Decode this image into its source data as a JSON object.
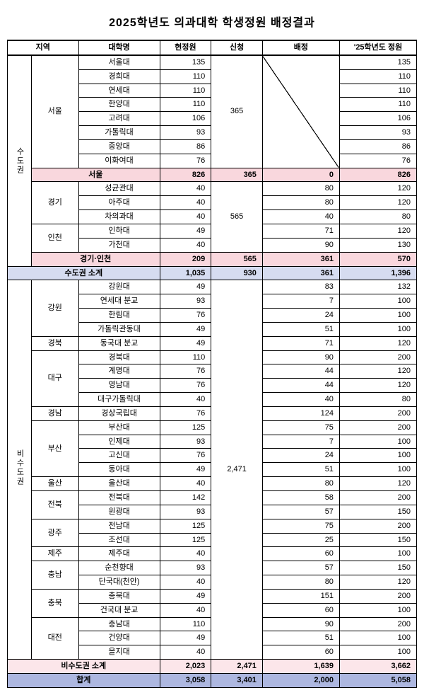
{
  "title": "2025학년도 의과대학 학생정원 배정결과",
  "headers": {
    "region": "지역",
    "univ": "대학명",
    "current": "현정원",
    "request": "신청",
    "allocated": "배정",
    "year25": "'25학년도 정원"
  },
  "seoul_request": "365",
  "gyeongin_request": "565",
  "nonmetro_request": "2,471",
  "metro_label": "수도권",
  "nonmetro_label": "비수도권",
  "seoul": {
    "label": "서울",
    "rows": [
      {
        "u": "서울대",
        "c": "135",
        "a": "",
        "y": "135"
      },
      {
        "u": "경희대",
        "c": "110",
        "a": "",
        "y": "110"
      },
      {
        "u": "연세대",
        "c": "110",
        "a": "",
        "y": "110"
      },
      {
        "u": "한양대",
        "c": "110",
        "a": "",
        "y": "110"
      },
      {
        "u": "고려대",
        "c": "106",
        "a": "",
        "y": "106"
      },
      {
        "u": "가톨릭대",
        "c": "93",
        "a": "",
        "y": "93"
      },
      {
        "u": "중앙대",
        "c": "86",
        "a": "",
        "y": "86"
      },
      {
        "u": "이화여대",
        "c": "76",
        "a": "",
        "y": "76"
      }
    ]
  },
  "seoul_sub": {
    "label": "서울",
    "c": "826",
    "r": "365",
    "a": "0",
    "y": "826"
  },
  "gyeonggi": {
    "label": "경기",
    "rows": [
      {
        "u": "성균관대",
        "c": "40",
        "a": "80",
        "y": "120"
      },
      {
        "u": "아주대",
        "c": "40",
        "a": "80",
        "y": "120"
      },
      {
        "u": "차의과대",
        "c": "40",
        "a": "40",
        "y": "80"
      }
    ]
  },
  "incheon": {
    "label": "인천",
    "rows": [
      {
        "u": "인하대",
        "c": "49",
        "a": "71",
        "y": "120"
      },
      {
        "u": "가천대",
        "c": "40",
        "a": "90",
        "y": "130"
      }
    ]
  },
  "gyeongin_sub": {
    "label": "경기·인천",
    "c": "209",
    "r": "565",
    "a": "361",
    "y": "570"
  },
  "metro_sub": {
    "label": "수도권 소계",
    "c": "1,035",
    "r": "930",
    "a": "361",
    "y": "1,396"
  },
  "nonmetro_groups": [
    {
      "label": "강원",
      "rows": [
        {
          "u": "강원대",
          "c": "49",
          "a": "83",
          "y": "132"
        },
        {
          "u": "연세대 분교",
          "c": "93",
          "a": "7",
          "y": "100"
        },
        {
          "u": "한림대",
          "c": "76",
          "a": "24",
          "y": "100"
        },
        {
          "u": "가톨릭관동대",
          "c": "49",
          "a": "51",
          "y": "100"
        }
      ]
    },
    {
      "label": "경북",
      "rows": [
        {
          "u": "동국대 분교",
          "c": "49",
          "a": "71",
          "y": "120"
        }
      ]
    },
    {
      "label": "대구",
      "rows": [
        {
          "u": "경북대",
          "c": "110",
          "a": "90",
          "y": "200"
        },
        {
          "u": "계명대",
          "c": "76",
          "a": "44",
          "y": "120"
        },
        {
          "u": "영남대",
          "c": "76",
          "a": "44",
          "y": "120"
        },
        {
          "u": "대구가톨릭대",
          "c": "40",
          "a": "40",
          "y": "80"
        }
      ]
    },
    {
      "label": "경남",
      "rows": [
        {
          "u": "경상국립대",
          "c": "76",
          "a": "124",
          "y": "200"
        }
      ]
    },
    {
      "label": "부산",
      "rows": [
        {
          "u": "부산대",
          "c": "125",
          "a": "75",
          "y": "200"
        },
        {
          "u": "인제대",
          "c": "93",
          "a": "7",
          "y": "100"
        },
        {
          "u": "고신대",
          "c": "76",
          "a": "24",
          "y": "100"
        },
        {
          "u": "동아대",
          "c": "49",
          "a": "51",
          "y": "100"
        }
      ]
    },
    {
      "label": "울산",
      "rows": [
        {
          "u": "울산대",
          "c": "40",
          "a": "80",
          "y": "120"
        }
      ]
    },
    {
      "label": "전북",
      "rows": [
        {
          "u": "전북대",
          "c": "142",
          "a": "58",
          "y": "200"
        },
        {
          "u": "원광대",
          "c": "93",
          "a": "57",
          "y": "150"
        }
      ]
    },
    {
      "label": "광주",
      "rows": [
        {
          "u": "전남대",
          "c": "125",
          "a": "75",
          "y": "200"
        },
        {
          "u": "조선대",
          "c": "125",
          "a": "25",
          "y": "150"
        }
      ]
    },
    {
      "label": "제주",
      "rows": [
        {
          "u": "제주대",
          "c": "40",
          "a": "60",
          "y": "100"
        }
      ]
    },
    {
      "label": "충남",
      "rows": [
        {
          "u": "순천향대",
          "c": "93",
          "a": "57",
          "y": "150"
        },
        {
          "u": "단국대(천안)",
          "c": "40",
          "a": "80",
          "y": "120"
        }
      ]
    },
    {
      "label": "충북",
      "rows": [
        {
          "u": "충북대",
          "c": "49",
          "a": "151",
          "y": "200"
        },
        {
          "u": "건국대 분교",
          "c": "40",
          "a": "60",
          "y": "100"
        }
      ]
    },
    {
      "label": "대전",
      "rows": [
        {
          "u": "충남대",
          "c": "110",
          "a": "90",
          "y": "200"
        },
        {
          "u": "건양대",
          "c": "49",
          "a": "51",
          "y": "100"
        },
        {
          "u": "을지대",
          "c": "40",
          "a": "60",
          "y": "100"
        }
      ]
    }
  ],
  "nonmetro_sub": {
    "label": "비수도권 소계",
    "c": "2,023",
    "r": "2,471",
    "a": "1,639",
    "y": "3,662"
  },
  "grand": {
    "label": "합계",
    "c": "3,058",
    "r": "3,401",
    "a": "2,000",
    "y": "5,058"
  }
}
